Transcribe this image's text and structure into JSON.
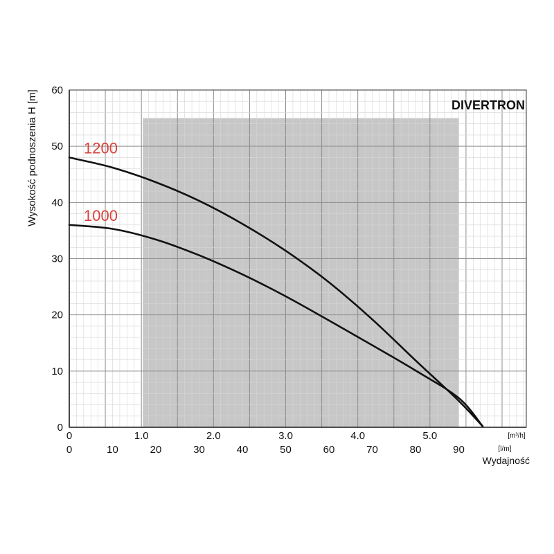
{
  "brand": "DIVERTRON",
  "colors": {
    "curve": "#111111",
    "series_label": "#d8413a",
    "shade": "#c7c7c7",
    "grid_minor": "#d6d6d6",
    "grid_major": "#8e8e8e"
  },
  "chart_data": {
    "type": "line",
    "ylabel": "Wysokość podnoszenia H [m]",
    "xlabel": "Wydajność",
    "ylim": [
      0,
      60
    ],
    "xlim": [
      0,
      95
    ],
    "y_ticks": [
      "0",
      "10",
      "20",
      "30",
      "40",
      "50",
      "60"
    ],
    "x_ticks_lpm": [
      "0",
      "10",
      "20",
      "30",
      "40",
      "50",
      "60",
      "70",
      "80",
      "90"
    ],
    "x_ticks_m3h": [
      "0",
      "1.0",
      "2.0",
      "3.0",
      "4.0",
      "5.0"
    ],
    "unit_m3h": "[m³/h]",
    "unit_lpm": "[l/m]",
    "shaded_region": {
      "x": [
        17,
        90
      ],
      "y": [
        0,
        55
      ]
    },
    "grid": true,
    "series": [
      {
        "name": "1200",
        "x": [
          0,
          10,
          20,
          30,
          40,
          50,
          60,
          70,
          80,
          90,
          95.5
        ],
        "y": [
          48,
          46.2,
          43.6,
          40.3,
          36.2,
          31.4,
          25.8,
          19.2,
          11.9,
          4.7,
          0.2
        ]
      },
      {
        "name": "1000",
        "x": [
          0,
          10,
          20,
          30,
          40,
          50,
          60,
          70,
          80,
          90,
          95.5
        ],
        "y": [
          36,
          35.3,
          33.4,
          30.6,
          27.2,
          23.3,
          19.0,
          14.6,
          10.1,
          5.2,
          0.2
        ]
      }
    ]
  }
}
